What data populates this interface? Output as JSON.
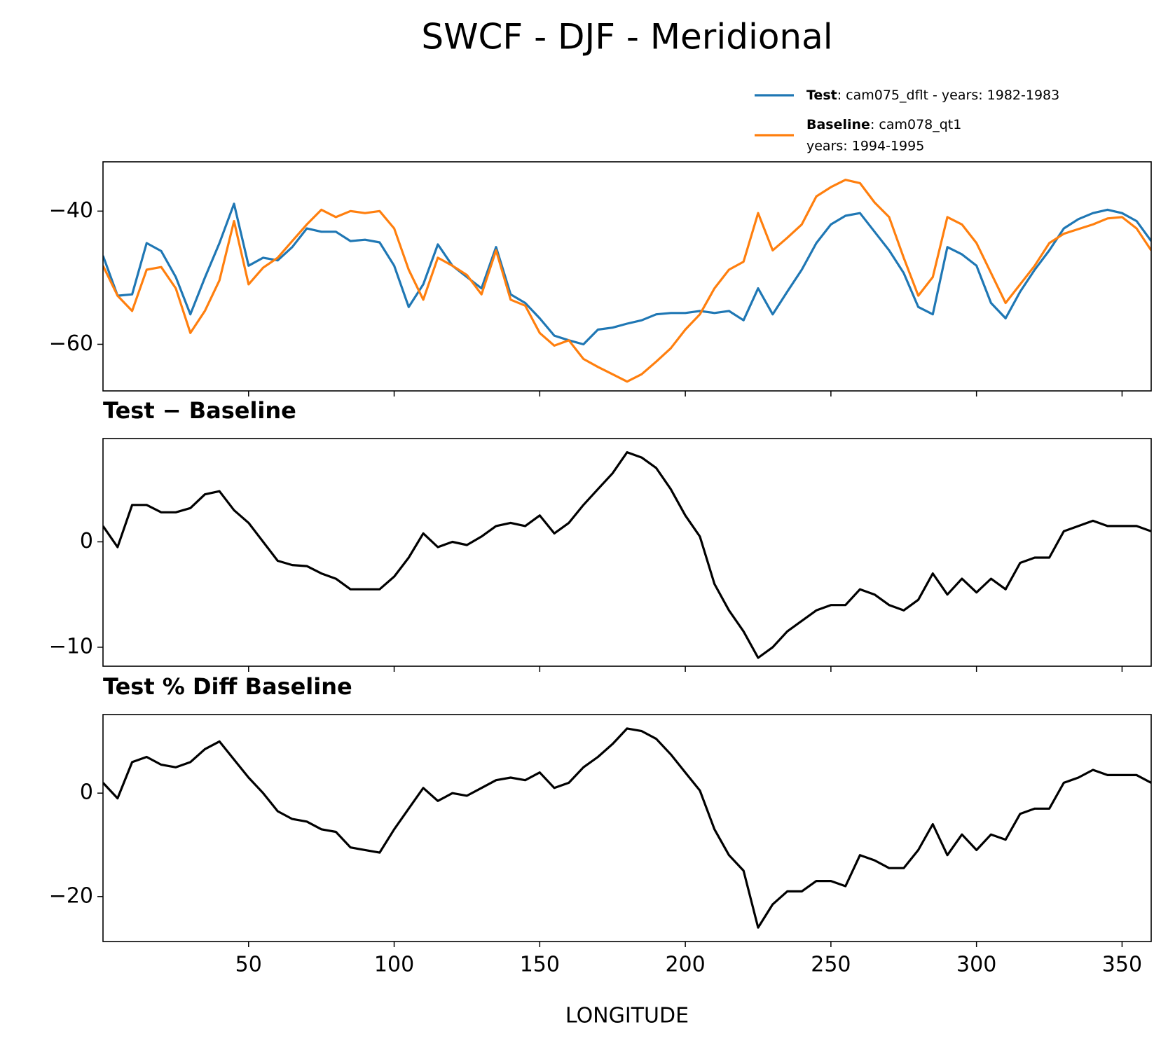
{
  "chart_data": [
    {
      "type": "line",
      "title": "SWCF - DJF - Meridional",
      "x": [
        0,
        5,
        10,
        15,
        20,
        25,
        30,
        35,
        40,
        45,
        50,
        55,
        60,
        65,
        70,
        75,
        80,
        85,
        90,
        95,
        100,
        105,
        110,
        115,
        120,
        125,
        130,
        135,
        140,
        145,
        150,
        155,
        160,
        165,
        170,
        175,
        180,
        185,
        190,
        195,
        200,
        205,
        210,
        215,
        220,
        225,
        230,
        235,
        240,
        245,
        250,
        255,
        260,
        265,
        270,
        275,
        280,
        285,
        290,
        295,
        300,
        305,
        310,
        315,
        320,
        325,
        330,
        335,
        340,
        345,
        350,
        355,
        360
      ],
      "series": [
        {
          "name": "Test",
          "label": [
            ": cam075_dflt - years: 1982-1983"
          ],
          "color": "#1f77b4",
          "values": [
            -46.7,
            -52.7,
            -52.5,
            -44.8,
            -46,
            -49.9,
            -55.5,
            -50,
            -44.8,
            -38.9,
            -48.2,
            -47,
            -47.4,
            -45.4,
            -42.6,
            -43.1,
            -43.1,
            -44.5,
            -44.3,
            -44.7,
            -48.2,
            -54.4,
            -51,
            -45,
            -48.2,
            -49.9,
            -51.6,
            -45.4,
            -52.5,
            -53.8,
            -56.1,
            -58.7,
            -59.4,
            -60,
            -57.8,
            -57.5,
            -56.9,
            -56.4,
            -55.5,
            -55.3,
            -55.3,
            -55,
            -55.3,
            -55,
            -56.4,
            -51.6,
            -55.5,
            -52.1,
            -48.8,
            -44.8,
            -42,
            -40.7,
            -40.3,
            -43.1,
            -45.9,
            -49.3,
            -54.4,
            -55.5,
            -45.4,
            -46.5,
            -48.2,
            -53.8,
            -56.1,
            -52.1,
            -48.8,
            -45.9,
            -42.6,
            -41.2,
            -40.3,
            -39.8,
            -40.3,
            -41.5,
            -44.5
          ]
        },
        {
          "name": "Baseline",
          "label": [
            ": cam078_qt1",
            "years: 1994-1995"
          ],
          "color": "#ff7f0e",
          "values": [
            -48.2,
            -52.7,
            -55,
            -48.8,
            -48.4,
            -51.6,
            -58.3,
            -55,
            -50.4,
            -41.5,
            -51,
            -48.5,
            -47,
            -44.5,
            -42,
            -39.8,
            -40.9,
            -40,
            -40.3,
            -40,
            -42.6,
            -48.8,
            -53.3,
            -47,
            -48.2,
            -49.6,
            -52.5,
            -45.9,
            -53.3,
            -54.2,
            -58.3,
            -60.2,
            -59.4,
            -62.2,
            -63.4,
            -64.5,
            -65.6,
            -64.5,
            -62.6,
            -60.6,
            -57.8,
            -55.5,
            -51.6,
            -48.8,
            -47.6,
            -40.3,
            -45.9,
            -44,
            -42,
            -37.8,
            -36.4,
            -35.3,
            -35.8,
            -38.7,
            -40.9,
            -47,
            -52.7,
            -49.9,
            -40.9,
            -42,
            -44.8,
            -49.3,
            -53.8,
            -51,
            -48.2,
            -44.8,
            -43.4,
            -42.7,
            -42,
            -41.1,
            -40.9,
            -42.6,
            -45.9
          ]
        }
      ],
      "xlim": [
        0,
        360
      ],
      "ylim": [
        -67,
        -32.6
      ],
      "yticks": [
        {
          "value": -60,
          "label": "−60"
        },
        {
          "value": -40,
          "label": "−40"
        }
      ],
      "xticks": [
        50,
        100,
        150,
        200,
        250,
        300,
        350
      ],
      "grid": false
    },
    {
      "type": "line",
      "title": "Test − Baseline",
      "x": [
        0,
        5,
        10,
        15,
        20,
        25,
        30,
        35,
        40,
        45,
        50,
        55,
        60,
        65,
        70,
        75,
        80,
        85,
        90,
        95,
        100,
        105,
        110,
        115,
        120,
        125,
        130,
        135,
        140,
        145,
        150,
        155,
        160,
        165,
        170,
        175,
        180,
        185,
        190,
        195,
        200,
        205,
        210,
        215,
        220,
        225,
        230,
        235,
        240,
        245,
        250,
        255,
        260,
        265,
        270,
        275,
        280,
        285,
        290,
        295,
        300,
        305,
        310,
        315,
        320,
        325,
        330,
        335,
        340,
        345,
        350,
        355,
        360
      ],
      "series": [
        {
          "color": "#000000",
          "values": [
            1.5,
            -0.5,
            3.5,
            3.5,
            2.8,
            2.8,
            3.2,
            4.5,
            4.8,
            3,
            1.8,
            0,
            -1.8,
            -2.2,
            -2.3,
            -3,
            -3.5,
            -4.5,
            -4.5,
            -4.5,
            -3.3,
            -1.5,
            0.8,
            -0.5,
            0,
            -0.3,
            0.5,
            1.5,
            1.8,
            1.5,
            2.5,
            0.8,
            1.8,
            3.5,
            5,
            6.5,
            8.5,
            8,
            7,
            5,
            2.5,
            0.5,
            -4,
            -6.5,
            -8.5,
            -11,
            -10,
            -8.5,
            -7.5,
            -6.5,
            -6,
            -6,
            -4.5,
            -5,
            -6,
            -6.5,
            -5.5,
            -3,
            -5,
            -3.5,
            -4.8,
            -3.5,
            -4.5,
            -2,
            -1.5,
            -1.5,
            1,
            1.5,
            2,
            1.5,
            1.5,
            1.5,
            1
          ]
        }
      ],
      "xlim": [
        0,
        360
      ],
      "ylim": [
        -11.8,
        9.8
      ],
      "yticks": [
        {
          "value": -10,
          "label": "−10"
        },
        0
      ],
      "xticks": [
        50,
        100,
        150,
        200,
        250,
        300,
        350
      ],
      "grid": false
    },
    {
      "type": "line",
      "title": "Test % Diff Baseline",
      "xlabel": "LONGITUDE",
      "x": [
        0,
        5,
        10,
        15,
        20,
        25,
        30,
        35,
        40,
        45,
        50,
        55,
        60,
        65,
        70,
        75,
        80,
        85,
        90,
        95,
        100,
        105,
        110,
        115,
        120,
        125,
        130,
        135,
        140,
        145,
        150,
        155,
        160,
        165,
        170,
        175,
        180,
        185,
        190,
        195,
        200,
        205,
        210,
        215,
        220,
        225,
        230,
        235,
        240,
        245,
        250,
        255,
        260,
        265,
        270,
        275,
        280,
        285,
        290,
        295,
        300,
        305,
        310,
        315,
        320,
        325,
        330,
        335,
        340,
        345,
        350,
        355,
        360
      ],
      "series": [
        {
          "color": "#000000",
          "values": [
            2,
            -1,
            6,
            7,
            5.5,
            5,
            6,
            8.5,
            10,
            6.5,
            3,
            0,
            -3.5,
            -5,
            -5.5,
            -7,
            -7.5,
            -10.5,
            -11,
            -11.5,
            -7,
            -3,
            1,
            -1.5,
            0,
            -0.5,
            1,
            2.5,
            3,
            2.5,
            4,
            1,
            2,
            5,
            7,
            9.5,
            12.5,
            12,
            10.5,
            7.5,
            4,
            0.5,
            -7,
            -12,
            -15,
            -26,
            -21.5,
            -19,
            -19,
            -17,
            -17,
            -18,
            -12,
            -13,
            -14.5,
            -14.5,
            -11,
            -6,
            -12,
            -8,
            -11,
            -8,
            -9,
            -4,
            -3,
            -3,
            2,
            3,
            4.5,
            3.5,
            3.5,
            3.5,
            2
          ]
        }
      ],
      "xlim": [
        0,
        360
      ],
      "ylim": [
        -28.7,
        15.2
      ],
      "yticks": [
        {
          "value": -20,
          "label": "−20"
        },
        0
      ],
      "xticks": [
        50,
        100,
        150,
        200,
        250,
        300,
        350
      ],
      "grid": false
    }
  ]
}
